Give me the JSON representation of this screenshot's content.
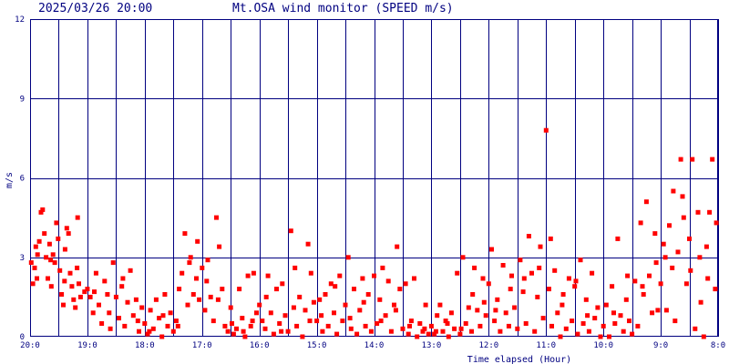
{
  "header": {
    "datetime": "2025/03/26 20:00",
    "title": "Mt.OSA wind monitor (SPEED m/s)"
  },
  "colors": {
    "accent": "#000080",
    "points": "#ff0000",
    "background": "#ffffff"
  },
  "chart_data": {
    "type": "scatter",
    "title": "Mt.OSA wind monitor (SPEED m/s)",
    "xlabel": "Time elapsed (Hour)",
    "ylabel": "m/s",
    "ylim": [
      0,
      12
    ],
    "xlim": [
      0,
      12
    ],
    "grid": true,
    "x_ticks": [
      {
        "x": 0,
        "label": "20:0"
      },
      {
        "x": 1,
        "label": "19:0"
      },
      {
        "x": 2,
        "label": "18:0"
      },
      {
        "x": 3,
        "label": "17:0"
      },
      {
        "x": 4,
        "label": "16:0"
      },
      {
        "x": 5,
        "label": "15:0"
      },
      {
        "x": 6,
        "label": "14:0"
      },
      {
        "x": 7,
        "label": "13:0"
      },
      {
        "x": 8,
        "label": "12:0"
      },
      {
        "x": 9,
        "label": "11:0"
      },
      {
        "x": 10,
        "label": "10:0"
      },
      {
        "x": 11,
        "label": "9:0"
      },
      {
        "x": 12,
        "label": "8:0"
      }
    ],
    "y_ticks": [
      {
        "y": 0,
        "label": "0"
      },
      {
        "y": 3,
        "label": "3"
      },
      {
        "y": 6,
        "label": "6"
      },
      {
        "y": 9,
        "label": "9"
      },
      {
        "y": 12,
        "label": "12"
      }
    ],
    "grid_x": [
      0.5,
      1,
      1.5,
      2,
      2.5,
      3,
      3.5,
      4,
      4.5,
      5,
      5.5,
      6,
      6.5,
      7,
      7.5,
      8,
      8.5,
      9,
      9.5,
      10,
      10.5,
      11,
      11.5,
      12
    ],
    "grid_y": [
      3,
      6,
      9
    ],
    "series": [
      {
        "values": [
          [
            0.02,
            2.8
          ],
          [
            0.05,
            2.0
          ],
          [
            0.08,
            2.6
          ],
          [
            0.1,
            3.4
          ],
          [
            0.13,
            3.1
          ],
          [
            0.16,
            3.6
          ],
          [
            0.19,
            4.7
          ],
          [
            0.22,
            4.8
          ],
          [
            0.25,
            3.9
          ],
          [
            0.28,
            3.0
          ],
          [
            0.31,
            2.2
          ],
          [
            0.34,
            3.5
          ],
          [
            0.37,
            1.9
          ],
          [
            0.4,
            3.1
          ],
          [
            0.43,
            2.8
          ],
          [
            0.46,
            4.3
          ],
          [
            0.49,
            3.7
          ],
          [
            0.52,
            2.5
          ],
          [
            0.55,
            1.6
          ],
          [
            0.58,
            1.2
          ],
          [
            0.61,
            3.3
          ],
          [
            0.64,
            4.1
          ],
          [
            0.67,
            3.9
          ],
          [
            0.7,
            2.4
          ],
          [
            0.73,
            1.9
          ],
          [
            0.76,
            1.4
          ],
          [
            0.79,
            1.1
          ],
          [
            0.82,
            2.6
          ],
          [
            0.85,
            2.0
          ],
          [
            0.88,
            1.5
          ],
          [
            0.12,
            2.2
          ],
          [
            0.36,
            2.9
          ],
          [
            0.6,
            2.1
          ],
          [
            0.83,
            4.5
          ],
          [
            0.95,
            1.7
          ],
          [
            1.0,
            1.8
          ],
          [
            1.05,
            1.5
          ],
          [
            1.1,
            0.9
          ],
          [
            1.15,
            2.4
          ],
          [
            1.2,
            1.2
          ],
          [
            1.25,
            0.5
          ],
          [
            1.3,
            2.1
          ],
          [
            1.35,
            1.6
          ],
          [
            1.4,
            0.3
          ],
          [
            1.45,
            2.8
          ],
          [
            1.5,
            1.5
          ],
          [
            1.55,
            0.7
          ],
          [
            1.6,
            1.9
          ],
          [
            1.65,
            0.4
          ],
          [
            1.7,
            1.3
          ],
          [
            1.75,
            2.5
          ],
          [
            1.8,
            0.8
          ],
          [
            1.85,
            1.4
          ],
          [
            1.9,
            0.2
          ],
          [
            1.95,
            1.1
          ],
          [
            1.12,
            1.7
          ],
          [
            1.38,
            0.9
          ],
          [
            1.62,
            2.2
          ],
          [
            1.88,
            0.6
          ],
          [
            2.0,
            0.5
          ],
          [
            2.05,
            0.1
          ],
          [
            2.1,
            1.0
          ],
          [
            2.15,
            0.3
          ],
          [
            2.2,
            1.4
          ],
          [
            2.25,
            0.7
          ],
          [
            2.3,
            0.0
          ],
          [
            2.35,
            1.6
          ],
          [
            2.4,
            0.4
          ],
          [
            2.45,
            0.9
          ],
          [
            2.5,
            0.2
          ],
          [
            2.55,
            0.6
          ],
          [
            2.6,
            1.8
          ],
          [
            2.65,
            2.4
          ],
          [
            2.7,
            3.9
          ],
          [
            2.75,
            1.2
          ],
          [
            2.8,
            3.0
          ],
          [
            2.85,
            1.6
          ],
          [
            2.9,
            2.2
          ],
          [
            2.95,
            1.4
          ],
          [
            2.08,
            0.2
          ],
          [
            2.32,
            0.8
          ],
          [
            2.58,
            0.4
          ],
          [
            2.78,
            2.8
          ],
          [
            2.92,
            3.6
          ],
          [
            3.0,
            2.6
          ],
          [
            3.05,
            1.0
          ],
          [
            3.1,
            2.9
          ],
          [
            3.15,
            1.5
          ],
          [
            3.2,
            0.6
          ],
          [
            3.25,
            4.5
          ],
          [
            3.3,
            3.4
          ],
          [
            3.35,
            1.8
          ],
          [
            3.4,
            0.4
          ],
          [
            3.45,
            0.2
          ],
          [
            3.5,
            1.1
          ],
          [
            3.55,
            0.1
          ],
          [
            3.6,
            0.3
          ],
          [
            3.65,
            1.8
          ],
          [
            3.7,
            0.7
          ],
          [
            3.75,
            0.0
          ],
          [
            3.8,
            2.3
          ],
          [
            3.85,
            0.4
          ],
          [
            3.9,
            2.4
          ],
          [
            3.95,
            0.9
          ],
          [
            3.08,
            2.1
          ],
          [
            3.28,
            1.4
          ],
          [
            3.52,
            0.5
          ],
          [
            3.72,
            0.2
          ],
          [
            3.88,
            0.6
          ],
          [
            4.0,
            1.2
          ],
          [
            4.05,
            0.6
          ],
          [
            4.1,
            0.3
          ],
          [
            4.15,
            2.3
          ],
          [
            4.2,
            0.9
          ],
          [
            4.25,
            0.1
          ],
          [
            4.3,
            1.8
          ],
          [
            4.35,
            0.5
          ],
          [
            4.4,
            2.0
          ],
          [
            4.45,
            0.8
          ],
          [
            4.5,
            0.2
          ],
          [
            4.55,
            4.0
          ],
          [
            4.6,
            1.1
          ],
          [
            4.65,
            0.4
          ],
          [
            4.7,
            1.5
          ],
          [
            4.75,
            0.0
          ],
          [
            4.8,
            1.0
          ],
          [
            4.85,
            3.5
          ],
          [
            4.9,
            2.4
          ],
          [
            4.95,
            1.3
          ],
          [
            4.12,
            1.5
          ],
          [
            4.38,
            0.2
          ],
          [
            4.62,
            2.6
          ],
          [
            4.88,
            0.6
          ],
          [
            5.0,
            0.6
          ],
          [
            5.05,
            1.4
          ],
          [
            5.1,
            0.2
          ],
          [
            5.15,
            1.6
          ],
          [
            5.2,
            0.4
          ],
          [
            5.25,
            2.0
          ],
          [
            5.3,
            0.9
          ],
          [
            5.35,
            0.1
          ],
          [
            5.4,
            2.3
          ],
          [
            5.45,
            0.6
          ],
          [
            5.5,
            1.2
          ],
          [
            5.55,
            3.0
          ],
          [
            5.6,
            0.3
          ],
          [
            5.65,
            1.8
          ],
          [
            5.7,
            0.1
          ],
          [
            5.75,
            1.0
          ],
          [
            5.8,
            2.2
          ],
          [
            5.85,
            0.4
          ],
          [
            5.9,
            1.6
          ],
          [
            5.95,
            0.2
          ],
          [
            5.08,
            0.8
          ],
          [
            5.32,
            1.9
          ],
          [
            5.58,
            0.7
          ],
          [
            5.82,
            1.3
          ],
          [
            6.0,
            2.3
          ],
          [
            6.05,
            0.5
          ],
          [
            6.1,
            1.4
          ],
          [
            6.15,
            2.6
          ],
          [
            6.2,
            0.8
          ],
          [
            6.25,
            2.1
          ],
          [
            6.3,
            0.2
          ],
          [
            6.35,
            1.2
          ],
          [
            6.4,
            3.4
          ],
          [
            6.45,
            1.8
          ],
          [
            6.5,
            0.3
          ],
          [
            6.55,
            2.0
          ],
          [
            6.6,
            0.1
          ],
          [
            6.65,
            0.6
          ],
          [
            6.7,
            2.2
          ],
          [
            6.75,
            0.0
          ],
          [
            6.8,
            0.5
          ],
          [
            6.85,
            0.2
          ],
          [
            6.9,
            1.2
          ],
          [
            6.95,
            0.1
          ],
          [
            6.12,
            0.6
          ],
          [
            6.38,
            1.0
          ],
          [
            6.62,
            0.4
          ],
          [
            6.88,
            0.3
          ],
          [
            7.0,
            0.4
          ],
          [
            7.05,
            0.1
          ],
          [
            7.1,
            0.8
          ],
          [
            7.15,
            1.2
          ],
          [
            7.2,
            0.2
          ],
          [
            7.25,
            0.6
          ],
          [
            7.3,
            0.0
          ],
          [
            7.35,
            0.9
          ],
          [
            7.4,
            0.3
          ],
          [
            7.45,
            2.4
          ],
          [
            7.5,
            0.1
          ],
          [
            7.55,
            3.0
          ],
          [
            7.6,
            0.5
          ],
          [
            7.65,
            1.1
          ],
          [
            7.7,
            0.2
          ],
          [
            7.75,
            2.6
          ],
          [
            7.8,
            1.0
          ],
          [
            7.85,
            0.4
          ],
          [
            7.9,
            2.2
          ],
          [
            7.95,
            0.8
          ],
          [
            7.08,
            0.2
          ],
          [
            7.28,
            0.5
          ],
          [
            7.52,
            0.3
          ],
          [
            7.72,
            1.6
          ],
          [
            7.92,
            1.3
          ],
          [
            8.0,
            2.0
          ],
          [
            8.05,
            3.3
          ],
          [
            8.1,
            0.6
          ],
          [
            8.15,
            1.4
          ],
          [
            8.2,
            0.2
          ],
          [
            8.25,
            2.7
          ],
          [
            8.3,
            0.9
          ],
          [
            8.35,
            0.4
          ],
          [
            8.4,
            2.3
          ],
          [
            8.45,
            1.1
          ],
          [
            8.5,
            0.3
          ],
          [
            8.55,
            2.9
          ],
          [
            8.6,
            1.7
          ],
          [
            8.65,
            0.5
          ],
          [
            8.7,
            3.8
          ],
          [
            8.75,
            2.4
          ],
          [
            8.8,
            0.2
          ],
          [
            8.85,
            1.5
          ],
          [
            8.9,
            3.4
          ],
          [
            8.95,
            0.7
          ],
          [
            8.12,
            1.0
          ],
          [
            8.38,
            1.8
          ],
          [
            8.62,
            2.2
          ],
          [
            8.88,
            2.6
          ],
          [
            9.0,
            7.8
          ],
          [
            9.05,
            1.8
          ],
          [
            9.1,
            0.4
          ],
          [
            9.15,
            2.5
          ],
          [
            9.2,
            0.9
          ],
          [
            9.25,
            0.0
          ],
          [
            9.3,
            1.6
          ],
          [
            9.35,
            0.3
          ],
          [
            9.4,
            2.2
          ],
          [
            9.45,
            0.6
          ],
          [
            9.5,
            1.9
          ],
          [
            9.55,
            0.1
          ],
          [
            9.6,
            2.9
          ],
          [
            9.65,
            0.5
          ],
          [
            9.7,
            1.4
          ],
          [
            9.75,
            0.2
          ],
          [
            9.8,
            2.4
          ],
          [
            9.85,
            0.7
          ],
          [
            9.9,
            1.1
          ],
          [
            9.95,
            0.0
          ],
          [
            9.08,
            3.7
          ],
          [
            9.28,
            1.2
          ],
          [
            9.52,
            2.1
          ],
          [
            9.72,
            0.8
          ],
          [
            10.0,
            0.4
          ],
          [
            10.05,
            1.2
          ],
          [
            10.1,
            0.0
          ],
          [
            10.15,
            1.9
          ],
          [
            10.2,
            0.5
          ],
          [
            10.25,
            3.7
          ],
          [
            10.3,
            0.8
          ],
          [
            10.35,
            0.2
          ],
          [
            10.4,
            1.4
          ],
          [
            10.45,
            0.6
          ],
          [
            10.5,
            0.1
          ],
          [
            10.55,
            2.1
          ],
          [
            10.6,
            0.4
          ],
          [
            10.65,
            4.3
          ],
          [
            10.7,
            1.6
          ],
          [
            10.75,
            5.1
          ],
          [
            10.8,
            2.3
          ],
          [
            10.85,
            0.9
          ],
          [
            10.9,
            3.9
          ],
          [
            10.95,
            1.0
          ],
          [
            10.18,
            0.9
          ],
          [
            10.42,
            2.3
          ],
          [
            10.68,
            1.9
          ],
          [
            10.92,
            2.8
          ],
          [
            11.0,
            2.0
          ],
          [
            11.05,
            3.5
          ],
          [
            11.1,
            1.0
          ],
          [
            11.15,
            4.2
          ],
          [
            11.2,
            2.6
          ],
          [
            11.25,
            0.6
          ],
          [
            11.3,
            3.2
          ],
          [
            11.35,
            6.7
          ],
          [
            11.4,
            4.5
          ],
          [
            11.45,
            2.0
          ],
          [
            11.5,
            3.7
          ],
          [
            11.55,
            6.7
          ],
          [
            11.6,
            0.3
          ],
          [
            11.65,
            4.7
          ],
          [
            11.7,
            1.3
          ],
          [
            11.75,
            0.0
          ],
          [
            11.8,
            3.4
          ],
          [
            11.85,
            4.7
          ],
          [
            11.9,
            6.7
          ],
          [
            11.95,
            1.8
          ],
          [
            11.08,
            3.0
          ],
          [
            11.22,
            5.5
          ],
          [
            11.38,
            5.3
          ],
          [
            11.52,
            2.5
          ],
          [
            11.68,
            3.0
          ],
          [
            11.82,
            2.2
          ],
          [
            11.97,
            4.3
          ]
        ]
      }
    ]
  }
}
